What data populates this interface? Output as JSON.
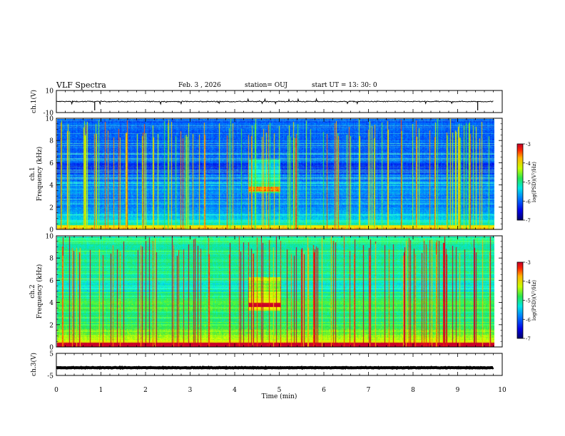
{
  "header": {
    "title": "VLF Spectra",
    "date": "Feb. 3 , 2026",
    "station": "station= OUJ",
    "start": "start UT = 13: 30: 0"
  },
  "chart_data": [
    {
      "type": "line",
      "name": "ch1-waveform",
      "ylabel": "ch.1(V)",
      "ylim": [
        -10,
        10
      ],
      "yticks": [
        "10",
        "-10"
      ],
      "xlim": [
        0,
        10
      ],
      "baseline": 0,
      "envelope": 0.8,
      "trace_end_min": 9.8,
      "color": "#000000"
    },
    {
      "type": "heatmap",
      "name": "ch1-spectrogram",
      "ylabel_line1": "ch.1",
      "ylabel_line2": "Frequency (kHz)",
      "ylim": [
        0,
        10
      ],
      "yticks": [
        "0",
        "2",
        "4",
        "6",
        "8",
        "10"
      ],
      "xlim": [
        0,
        10
      ],
      "data_end_min": 9.8,
      "event_window_min": [
        4.3,
        5.0
      ],
      "event_band_khz": [
        3.4,
        3.9
      ],
      "colorbar": {
        "label": "log(PSD)(V²/Hz)",
        "range": [
          -7,
          -3
        ],
        "ticks": [
          "-3",
          "-4",
          "-5",
          "-6",
          "-7"
        ]
      }
    },
    {
      "type": "heatmap",
      "name": "ch2-spectrogram",
      "ylabel_line1": "ch.2",
      "ylabel_line2": "Frequency (kHz)",
      "ylim": [
        0,
        10
      ],
      "yticks": [
        "0",
        "2",
        "4",
        "6",
        "8",
        "10"
      ],
      "xlim": [
        0,
        10
      ],
      "data_end_min": 9.8,
      "event_window_min": [
        4.3,
        5.0
      ],
      "event_band_khz": [
        3.6,
        4.0
      ],
      "colorbar": {
        "label": "log(PSD)(V²/Hz)",
        "range": [
          -7,
          -3
        ],
        "ticks": [
          "-3",
          "-4",
          "-5",
          "-6",
          "-7"
        ]
      }
    },
    {
      "type": "line",
      "name": "ch3-waveform",
      "ylabel": "ch.3(V)",
      "ylim": [
        -5,
        5
      ],
      "yticks": [
        "5",
        "-5"
      ],
      "xlim": [
        0,
        10
      ],
      "baseline": -1.5,
      "envelope": 0.25,
      "trace_end_min": 9.8,
      "color": "#000000",
      "xlabel": "Time (min)",
      "xticks": [
        "0",
        "1",
        "2",
        "3",
        "4",
        "5",
        "6",
        "7",
        "8",
        "9",
        "10"
      ]
    }
  ]
}
